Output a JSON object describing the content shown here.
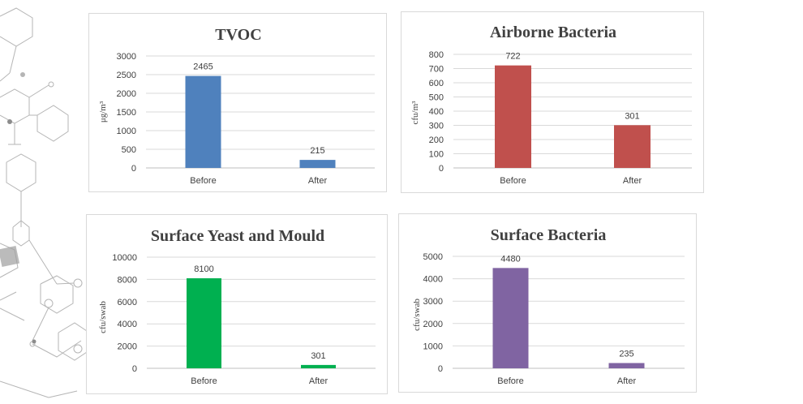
{
  "colors": {
    "tvoc": "#4f81bd",
    "airborne": "#c0504d",
    "yeast": "#00b050",
    "surface": "#8064a2",
    "decor": "#a6a6a6"
  },
  "chart_data": [
    {
      "type": "bar",
      "title": "TVOC",
      "ylabel": "μg/m³",
      "xlabel": "",
      "categories": [
        "Before",
        "After"
      ],
      "values": [
        2465,
        215
      ],
      "value_labels": [
        "2465",
        "215"
      ],
      "ylim": [
        0,
        3000
      ],
      "yticks": [
        "0",
        "500",
        "1000",
        "1500",
        "2000",
        "2500",
        "3000"
      ],
      "grid": true,
      "color_key": "tvoc"
    },
    {
      "type": "bar",
      "title": "Airborne Bacteria",
      "ylabel": "cfu/m³",
      "xlabel": "",
      "categories": [
        "Before",
        "After"
      ],
      "values": [
        722,
        301
      ],
      "value_labels": [
        "722",
        "301"
      ],
      "ylim": [
        0,
        800
      ],
      "yticks": [
        "0",
        "100",
        "200",
        "300",
        "400",
        "500",
        "600",
        "700",
        "800"
      ],
      "grid": true,
      "color_key": "airborne"
    },
    {
      "type": "bar",
      "title": "Surface Yeast and Mould",
      "ylabel": "cfu/swab",
      "xlabel": "",
      "categories": [
        "Before",
        "After"
      ],
      "values": [
        8100,
        301
      ],
      "value_labels": [
        "8100",
        "301"
      ],
      "ylim": [
        0,
        10000
      ],
      "yticks": [
        "0",
        "2000",
        "4000",
        "6000",
        "8000",
        "10000"
      ],
      "grid": true,
      "color_key": "yeast"
    },
    {
      "type": "bar",
      "title": "Surface Bacteria",
      "ylabel": "cfu/swab",
      "xlabel": "",
      "categories": [
        "Before",
        "After"
      ],
      "values": [
        4480,
        235
      ],
      "value_labels": [
        "4480",
        "235"
      ],
      "ylim": [
        0,
        5000
      ],
      "yticks": [
        "0",
        "1000",
        "2000",
        "3000",
        "4000",
        "5000"
      ],
      "grid": true,
      "color_key": "surface"
    }
  ]
}
